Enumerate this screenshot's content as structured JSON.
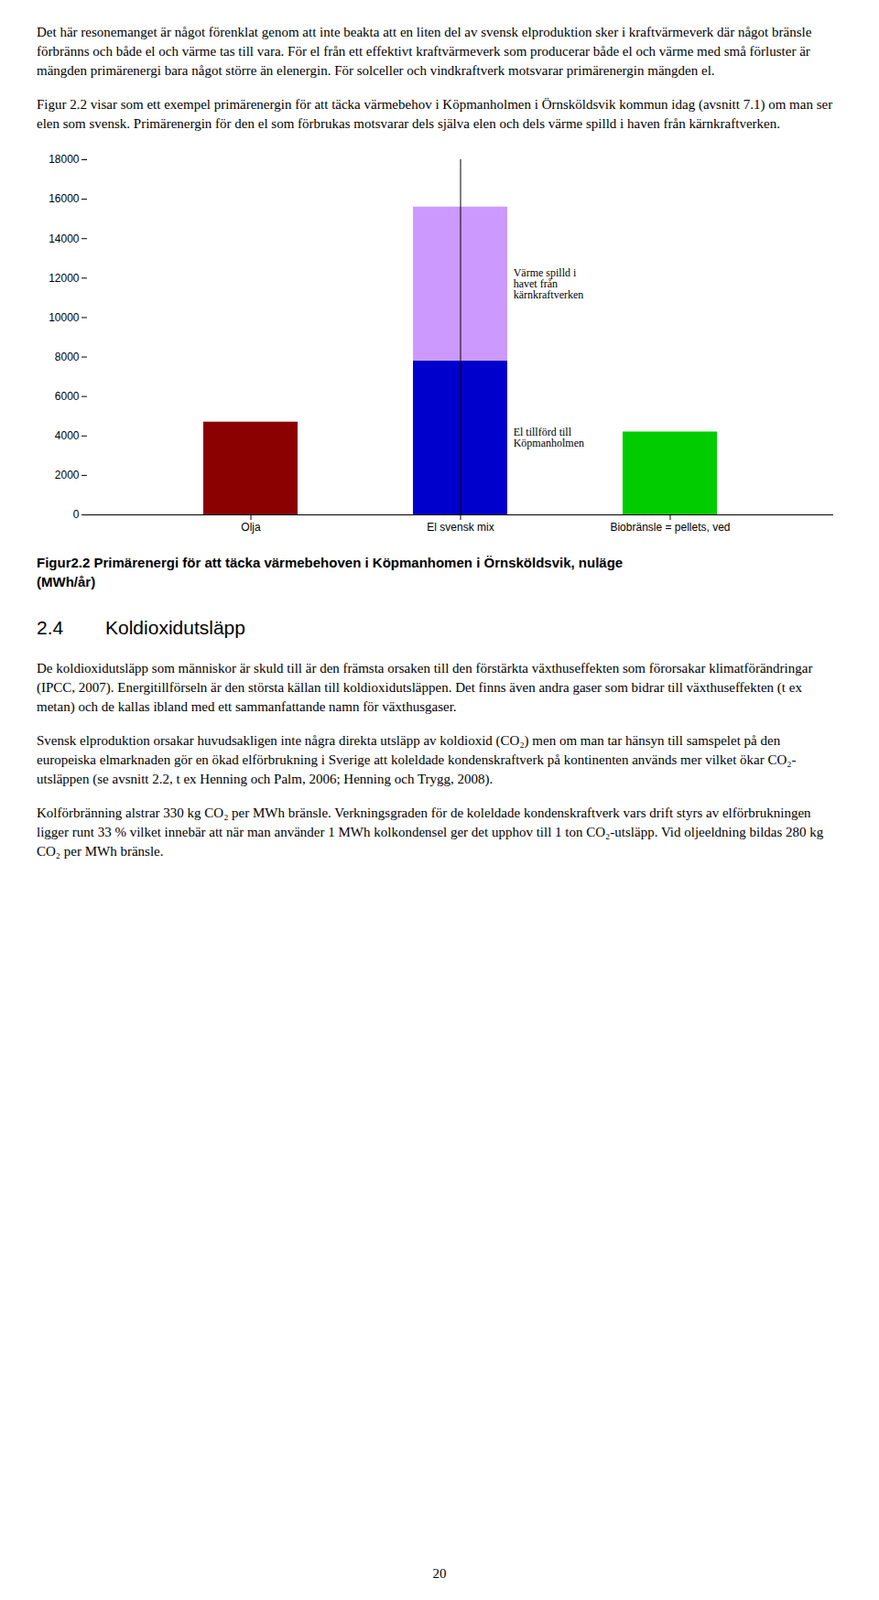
{
  "text_before": [
    "Det här resonemanget är något förenklat genom att inte beakta att en liten del av svensk elproduktion sker i kraftvärmeverk där något bränsle förbränns och både el och värme tas till vara. För el från ett effektivt kraftvärmeverk som producerar både el och värme med små förluster är mängden primärenergi bara något större än elenergin. För solceller och vindkraftverk motsvarar primärenergin mängden el.",
    "Figur 2.2 visar som ett exempel primärenergin för att täcka värmebehov i Köpmanholmen i Örnsköldsvik kommun idag (avsnitt 7.1) om man ser elen som svensk. Primärenergin för den el som förbrukas motsvarar dels själva elen och dels värme spilld i haven från kärnkraftverken."
  ],
  "chart_data": {
    "type": "bar",
    "stacked": true,
    "categories": [
      "Olja",
      "El svensk mix",
      "Biobränsle = pellets, ved"
    ],
    "series": [
      {
        "colors": [
          "#8B0000",
          "#0000CC",
          "#00CC00"
        ],
        "values": [
          4700,
          7800,
          4200
        ]
      },
      {
        "color": "#CC99FF",
        "values": [
          0,
          7800,
          0
        ]
      }
    ],
    "ylim": [
      0,
      18000
    ],
    "yticks": [
      0,
      2000,
      4000,
      6000,
      8000,
      10000,
      12000,
      14000,
      16000,
      18000
    ],
    "grid": false,
    "annotations": [
      {
        "text": "El tillförd till Köpmanholmen",
        "x": "El svensk mix",
        "y": 3900
      },
      {
        "text": "Värme spilld i havet från kärnkraftverken",
        "x": "El svensk mix",
        "y": 11700
      }
    ]
  },
  "caption": [
    "Figur2.2 Primärenergi för att täcka värmebehoven i Köpmanhomen i Örnsköldsvik, nuläge",
    "(MWh/år)"
  ],
  "section": {
    "number": "2.4",
    "title": "Koldioxidutsläpp"
  },
  "text_after": [
    "De koldioxidutsläpp som människor är skuld till är den främsta orsaken till den förstärkta växthuseffekten som förorsakar klimatförändringar (IPCC, 2007). Energitillförseln är den största källan till koldioxidutsläppen. Det finns även andra gaser som bidrar till växthuseffekten (t ex metan) och de kallas ibland med ett sammanfattande namn för växthusgaser.",
    "Svensk elproduktion orsakar huvudsakligen inte några direkta utsläpp av koldioxid (CO₂) men om man tar hänsyn till samspelet på den europeiska elmarknaden gör en ökad elförbrukning i Sverige att koleldade kondenskraftverk på kontinenten används mer vilket ökar CO₂-utsläppen (se avsnitt 2.2, t ex Henning och Palm, 2006; Henning och Trygg, 2008).",
    "Kolförbränning alstrar 330 kg CO₂ per MWh bränsle. Verkningsgraden för de koleldade kondenskraftverk vars drift styrs av elförbrukningen ligger runt 33 % vilket innebär att när man använder 1 MWh kolkondensel ger det upphov till 1 ton CO₂-utsläpp. Vid oljeeldning bildas 280 kg CO₂ per MWh bränsle."
  ],
  "page_number": "20",
  "background_color": "#FFFFFF"
}
